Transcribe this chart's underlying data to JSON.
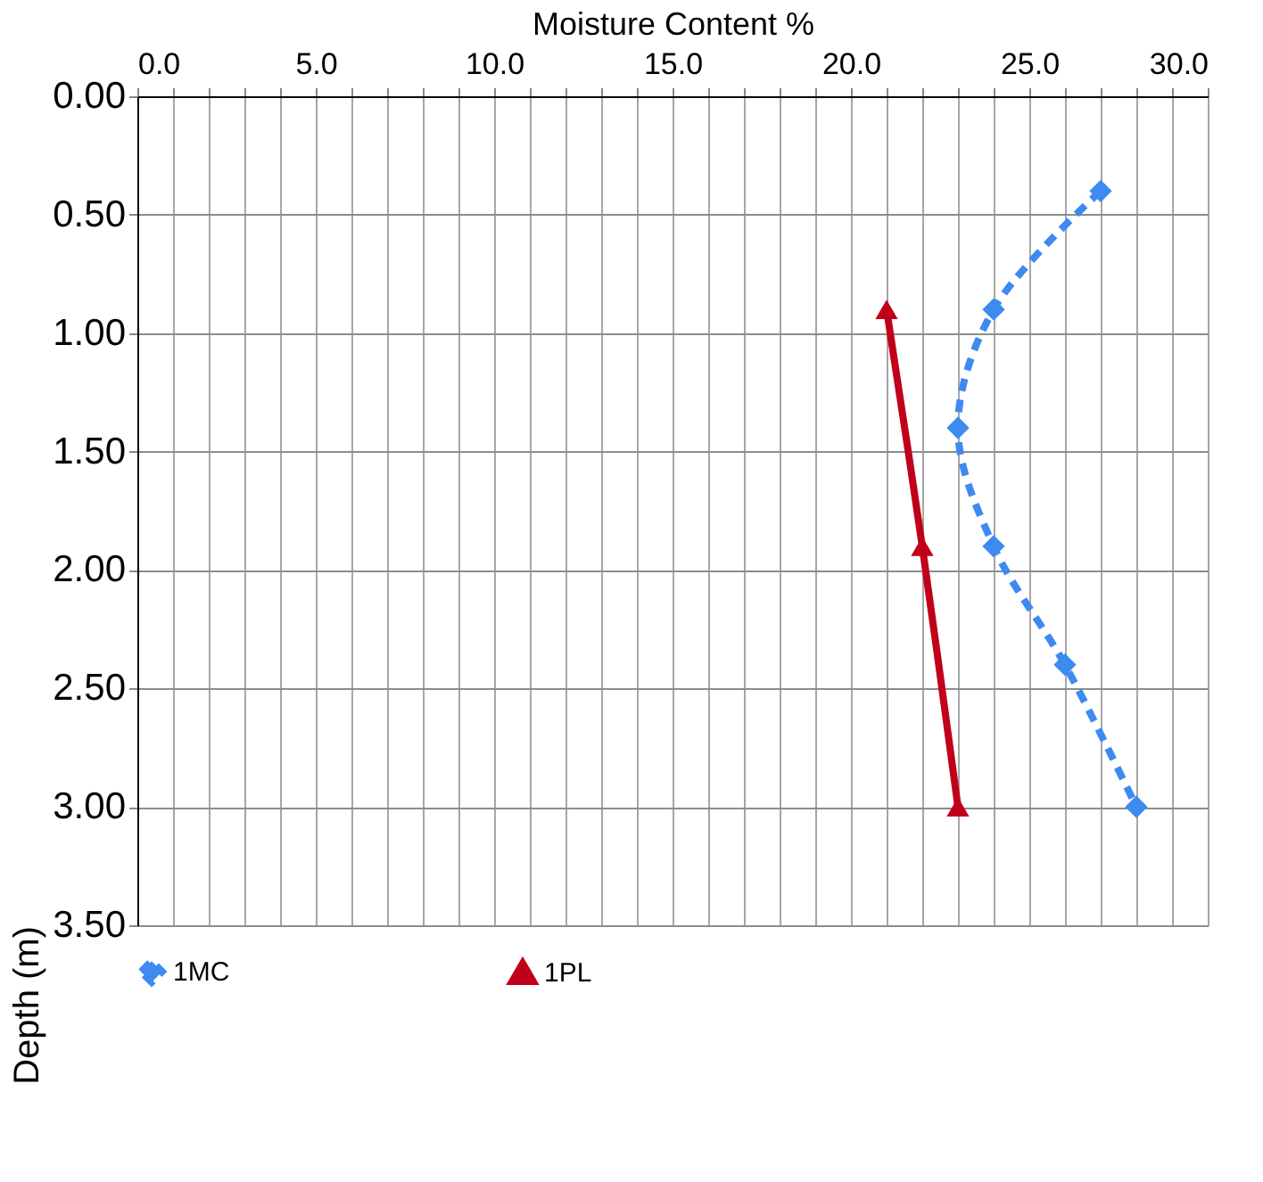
{
  "chart_data": {
    "type": "line",
    "xlabel": "Moisture Content %",
    "ylabel": "Depth (m)",
    "xlim": [
      0,
      30
    ],
    "ylim": [
      3.5,
      0
    ],
    "xticks": [
      {
        "value": 0,
        "label": "0.0"
      },
      {
        "value": 1,
        "label": null
      },
      {
        "value": 2,
        "label": null
      },
      {
        "value": 3,
        "label": null
      },
      {
        "value": 4,
        "label": null
      },
      {
        "value": 5,
        "label": "5.0"
      },
      {
        "value": 6,
        "label": null
      },
      {
        "value": 7,
        "label": null
      },
      {
        "value": 8,
        "label": null
      },
      {
        "value": 9,
        "label": null
      },
      {
        "value": 10,
        "label": "10.0"
      },
      {
        "value": 11,
        "label": null
      },
      {
        "value": 12,
        "label": null
      },
      {
        "value": 13,
        "label": null
      },
      {
        "value": 14,
        "label": null
      },
      {
        "value": 15,
        "label": "15.0"
      },
      {
        "value": 16,
        "label": null
      },
      {
        "value": 17,
        "label": null
      },
      {
        "value": 18,
        "label": null
      },
      {
        "value": 19,
        "label": null
      },
      {
        "value": 20,
        "label": "20.0"
      },
      {
        "value": 21,
        "label": null
      },
      {
        "value": 22,
        "label": null
      },
      {
        "value": 23,
        "label": null
      },
      {
        "value": 24,
        "label": null
      },
      {
        "value": 25,
        "label": "25.0"
      },
      {
        "value": 26,
        "label": null
      },
      {
        "value": 27,
        "label": null
      },
      {
        "value": 28,
        "label": null
      },
      {
        "value": 29,
        "label": null
      },
      {
        "value": 30,
        "label": "30.0"
      }
    ],
    "yticks": [
      {
        "value": 0,
        "label": "0.00"
      },
      {
        "value": 0.5,
        "label": "0.50"
      },
      {
        "value": 1,
        "label": "1.00"
      },
      {
        "value": 1.5,
        "label": "1.50"
      },
      {
        "value": 2,
        "label": "2.00"
      },
      {
        "value": 2.5,
        "label": "2.50"
      },
      {
        "value": 3,
        "label": "3.00"
      },
      {
        "value": 3.5,
        "label": "3.50"
      }
    ],
    "grid": true,
    "legend": "bottom",
    "series": [
      {
        "name": "1MC",
        "color": "#3d8af0",
        "marker": "diamond",
        "line_style": "dashed",
        "x": [
          27,
          24,
          23,
          24,
          26,
          28
        ],
        "values": [
          0.4,
          0.9,
          1.4,
          1.9,
          2.4,
          3.0
        ]
      },
      {
        "name": "1PL",
        "color": "#c0001a",
        "marker": "triangle",
        "line_style": "solid",
        "x": [
          21,
          22,
          23
        ],
        "values": [
          0.9,
          1.9,
          3.0
        ]
      }
    ]
  }
}
